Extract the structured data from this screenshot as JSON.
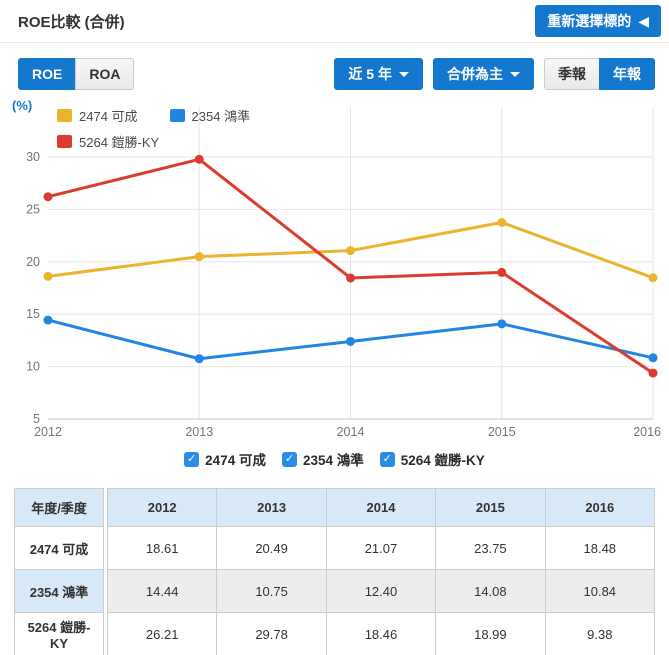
{
  "header": {
    "title": "ROE比較 (合併)",
    "reselect_label": "重新選擇標的",
    "reselect_icon": "◀"
  },
  "toolbar": {
    "metric_tabs": [
      {
        "label": "ROE",
        "active": true
      },
      {
        "label": "ROA",
        "active": false
      }
    ],
    "range_dropdown_label": "近 5 年",
    "statement_dropdown_label": "合併為主",
    "period_tabs": [
      {
        "label": "季報",
        "active": false
      },
      {
        "label": "年報",
        "active": true
      }
    ]
  },
  "colors": {
    "accent_blue": "#1478cf",
    "checkbox_blue": "#2b8ce6",
    "grid_line": "#e6e6e6",
    "axis_text": "#757575"
  },
  "chart_data": {
    "type": "line",
    "title": "ROE比較 (合併)",
    "ylabel": "(%)",
    "x": [
      "2012",
      "2013",
      "2014",
      "2015",
      "2016"
    ],
    "series": [
      {
        "name": "2474 可成",
        "color": "#eab42c",
        "values": [
          18.61,
          20.49,
          21.07,
          23.75,
          18.48
        ]
      },
      {
        "name": "2354 鴻準",
        "color": "#2284e4",
        "values": [
          14.44,
          10.75,
          12.4,
          14.08,
          10.84
        ]
      },
      {
        "name": "5264 鎧勝-KY",
        "color": "#dc3c2f",
        "values": [
          26.21,
          29.78,
          18.46,
          18.99,
          9.38
        ]
      }
    ],
    "ylim": [
      5,
      30
    ],
    "ytick_step": 5,
    "grid": true,
    "legend_position": "top-left-inside"
  },
  "series_toggles": [
    {
      "label": "2474 可成",
      "checked": true
    },
    {
      "label": "2354 鴻準",
      "checked": true
    },
    {
      "label": "5264 鎧勝-KY",
      "checked": true
    }
  ],
  "table": {
    "corner_header": "年度/季度",
    "columns": [
      "2012",
      "2013",
      "2014",
      "2015",
      "2016"
    ],
    "rows": [
      {
        "label": "2474 可成",
        "values": [
          "18.61",
          "20.49",
          "21.07",
          "23.75",
          "18.48"
        ]
      },
      {
        "label": "2354 鴻準",
        "values": [
          "14.44",
          "10.75",
          "12.40",
          "14.08",
          "10.84"
        ]
      },
      {
        "label": "5264 鎧勝-KY",
        "values": [
          "26.21",
          "29.78",
          "18.46",
          "18.99",
          "9.38"
        ]
      }
    ]
  }
}
